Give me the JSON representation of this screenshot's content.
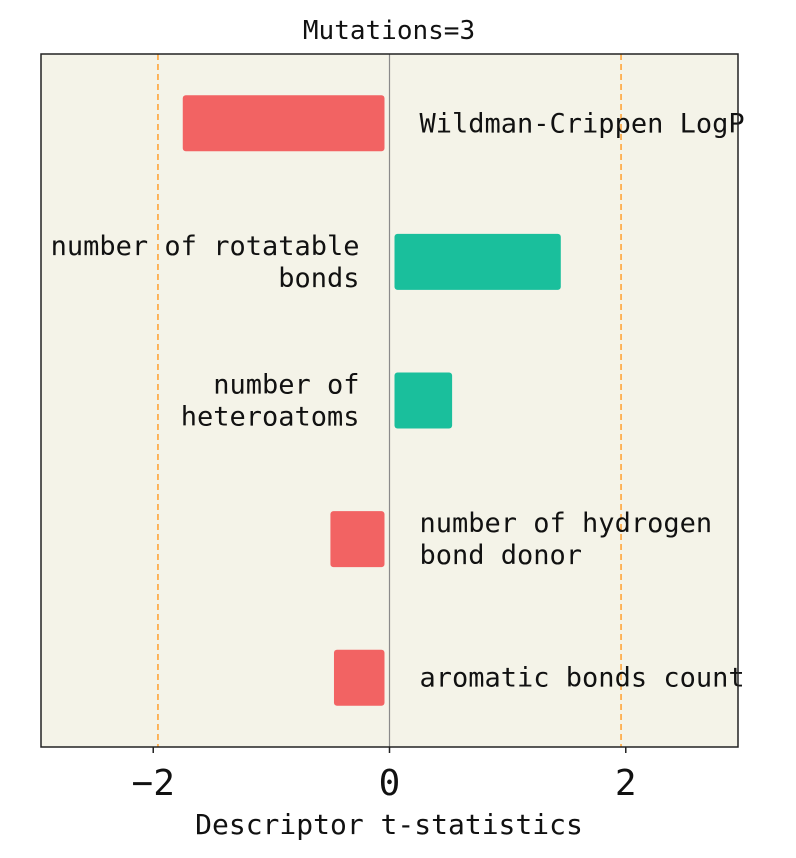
{
  "chart_data": {
    "type": "bar",
    "orientation": "horizontal",
    "title": "Mutations=3",
    "xlabel": "Descriptor t-statistics",
    "ylabel": "",
    "xlim": [
      -2.95,
      2.95
    ],
    "xticks": [
      -2,
      0,
      2
    ],
    "xtick_labels": [
      "−2",
      "0",
      "2"
    ],
    "threshold_lines": [
      -1.96,
      1.96
    ],
    "grid": false,
    "categories": [
      "Wildman-Crippen LogP",
      "number of rotatable bonds",
      "number of heteroatoms",
      "number of hydrogen bond donor",
      "aromatic bonds count"
    ],
    "label_lines": [
      [
        "Wildman-Crippen LogP"
      ],
      [
        "number of rotatable",
        "bonds"
      ],
      [
        "number of",
        "heteroatoms"
      ],
      [
        "number of hydrogen",
        "bond donor"
      ],
      [
        "aromatic bonds count"
      ]
    ],
    "values": [
      -1.75,
      1.45,
      0.53,
      -0.5,
      -0.47
    ],
    "colors": {
      "negative": "#f26363",
      "positive": "#1abf9c",
      "threshold": "#ffa53a",
      "zero_line": "#8a8a8a",
      "background": "#f4f3e8",
      "frame": "#222222"
    }
  }
}
